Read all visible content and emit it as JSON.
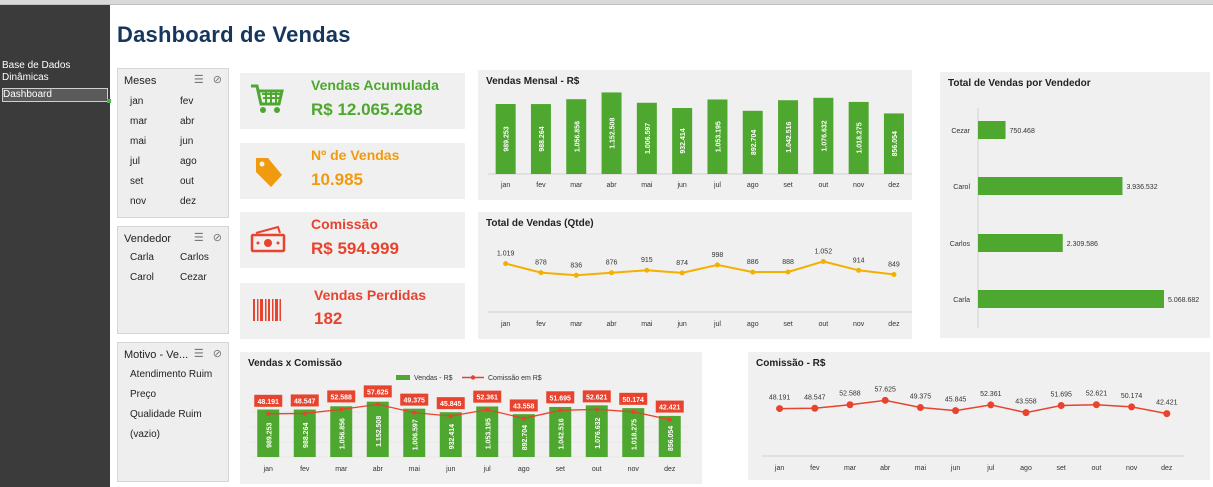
{
  "nav": {
    "items": [
      "Base de Dados",
      "Dinâmicas",
      "Dashboard"
    ]
  },
  "title": "Dashboard de Vendas",
  "slicers": {
    "meses": {
      "title": "Meses",
      "items": [
        "jan",
        "fev",
        "mar",
        "abr",
        "mai",
        "jun",
        "jul",
        "ago",
        "set",
        "out",
        "nov",
        "dez"
      ]
    },
    "vendedor": {
      "title": "Vendedor",
      "items": [
        "Carla",
        "Carlos",
        "Carol",
        "Cezar"
      ]
    },
    "motivo": {
      "title": "Motivo - Ve...",
      "items": [
        "Atendimento Ruim",
        "Preço",
        "Qualidade Ruim",
        "(vazio)"
      ]
    }
  },
  "kpis": [
    {
      "label": "Vendas Acumulada",
      "value": "R$ 12.065.268",
      "color": "#4ea72e",
      "icon": "shopping-cart-icon"
    },
    {
      "label": "Nº de Vendas",
      "value": "10.985",
      "color": "#f29a0e",
      "icon": "price-tag-icon"
    },
    {
      "label": "Comissão",
      "value": "R$ 594.999",
      "color": "#e8432e",
      "icon": "money-icon"
    },
    {
      "label": "Vendas Perdidas",
      "value": "182",
      "color": "#e8432e",
      "icon": "barcode-icon"
    }
  ],
  "months": [
    "jan",
    "fev",
    "mar",
    "abr",
    "mai",
    "jun",
    "jul",
    "ago",
    "set",
    "out",
    "nov",
    "dez"
  ],
  "chart_data": [
    {
      "type": "bar",
      "title": "Vendas Mensal - R$",
      "categories": [
        "jan",
        "fev",
        "mar",
        "abr",
        "mai",
        "jun",
        "jul",
        "ago",
        "set",
        "out",
        "nov",
        "dez"
      ],
      "values": [
        989253,
        988264,
        1056856,
        1152508,
        1006597,
        932414,
        1053195,
        892704,
        1042516,
        1076632,
        1018275,
        856054
      ],
      "labels": [
        "989.253",
        "988.264",
        "1.056.856",
        "1.152.508",
        "1.006.597",
        "932.414",
        "1.053.195",
        "892.704",
        "1.042.516",
        "1.076.632",
        "1.018.275",
        "856.054"
      ],
      "color": "#4ea72e"
    },
    {
      "type": "line",
      "title": "Total de Vendas (Qtde)",
      "categories": [
        "jan",
        "fev",
        "mar",
        "abr",
        "mai",
        "jun",
        "jul",
        "ago",
        "set",
        "out",
        "nov",
        "dez"
      ],
      "values": [
        1019,
        878,
        836,
        876,
        915,
        874,
        998,
        886,
        888,
        1052,
        914,
        849
      ],
      "labels": [
        "1.019",
        "878",
        "836",
        "876",
        "915",
        "874",
        "998",
        "886",
        "888",
        "1.052",
        "914",
        "849"
      ],
      "color": "#f2b000"
    },
    {
      "type": "bar",
      "title": "Total de Vendas por Vendedor",
      "categories": [
        "Cezar",
        "Carol",
        "Carlos",
        "Carla"
      ],
      "values": [
        750468,
        3936532,
        2309586,
        5068682
      ],
      "labels": [
        "750.468",
        "3.936.532",
        "2.309.586",
        "5.068.682"
      ],
      "color": "#4ea72e",
      "orientation": "horizontal"
    },
    {
      "type": "bar",
      "title": "Vendas x Comissão",
      "categories": [
        "jan",
        "fev",
        "mar",
        "abr",
        "mai",
        "jun",
        "jul",
        "ago",
        "set",
        "out",
        "nov",
        "dez"
      ],
      "series": [
        {
          "name": "Vendas - R$",
          "type": "bar",
          "color": "#4ea72e",
          "values": [
            989253,
            988264,
            1056856,
            1152508,
            1006597,
            932414,
            1053195,
            892704,
            1042516,
            1076632,
            1018275,
            856054
          ],
          "labels": [
            "989.253",
            "988.264",
            "1.056.856",
            "1.152.508",
            "1.006.597",
            "932.414",
            "1.053.195",
            "892.704",
            "1.042.516",
            "1.076.632",
            "1.018.275",
            "856.054"
          ]
        },
        {
          "name": "Comissão em R$",
          "type": "line",
          "color": "#e8432e",
          "values": [
            48191,
            48547,
            52588,
            57625,
            49375,
            45845,
            52361,
            43558,
            51695,
            52621,
            50174,
            42421
          ],
          "labels": [
            "48.191",
            "48.547",
            "52.588",
            "57.625",
            "49.375",
            "45.845",
            "52.361",
            "43.558",
            "51.695",
            "52.621",
            "50.174",
            "42.421"
          ]
        }
      ]
    },
    {
      "type": "line",
      "title": "Comissão - R$",
      "categories": [
        "jan",
        "fev",
        "mar",
        "abr",
        "mai",
        "jun",
        "jul",
        "ago",
        "set",
        "out",
        "nov",
        "dez"
      ],
      "values": [
        48191,
        48547,
        52588,
        57625,
        49375,
        45845,
        52361,
        43558,
        51695,
        52621,
        50174,
        42421
      ],
      "labels": [
        "48.191",
        "48.547",
        "52.588",
        "57.625",
        "49.375",
        "45.845",
        "52.361",
        "43.558",
        "51.695",
        "52.621",
        "50.174",
        "42.421"
      ],
      "color": "#e8432e"
    }
  ]
}
